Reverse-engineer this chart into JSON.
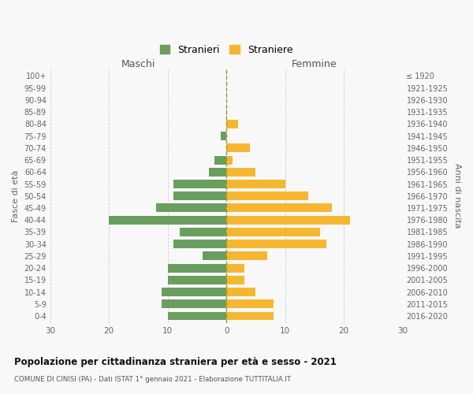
{
  "age_groups": [
    "0-4",
    "5-9",
    "10-14",
    "15-19",
    "20-24",
    "25-29",
    "30-34",
    "35-39",
    "40-44",
    "45-49",
    "50-54",
    "55-59",
    "60-64",
    "65-69",
    "70-74",
    "75-79",
    "80-84",
    "85-89",
    "90-94",
    "95-99",
    "100+"
  ],
  "birth_years": [
    "2016-2020",
    "2011-2015",
    "2006-2010",
    "2001-2005",
    "1996-2000",
    "1991-1995",
    "1986-1990",
    "1981-1985",
    "1976-1980",
    "1971-1975",
    "1966-1970",
    "1961-1965",
    "1956-1960",
    "1951-1955",
    "1946-1950",
    "1941-1945",
    "1936-1940",
    "1931-1935",
    "1926-1930",
    "1921-1925",
    "≤ 1920"
  ],
  "males": [
    10,
    11,
    11,
    10,
    10,
    4,
    9,
    8,
    20,
    12,
    9,
    9,
    3,
    2,
    0,
    1,
    0,
    0,
    0,
    0,
    0
  ],
  "females": [
    8,
    8,
    5,
    3,
    3,
    7,
    17,
    16,
    21,
    18,
    14,
    10,
    5,
    1,
    4,
    0,
    2,
    0,
    0,
    0,
    0
  ],
  "male_color": "#6a9e5f",
  "female_color": "#f5b731",
  "xlim": 30,
  "title": "Popolazione per cittadinanza straniera per età e sesso - 2021",
  "subtitle": "COMUNE DI CINISI (PA) - Dati ISTAT 1° gennaio 2021 - Elaborazione TUTTITALIA.IT",
  "ylabel_left": "Fasce di età",
  "ylabel_right": "Anni di nascita",
  "xlabel_left": "Maschi",
  "xlabel_right": "Femmine",
  "legend_male": "Stranieri",
  "legend_female": "Straniere",
  "bg_color": "#f8f8f8",
  "grid_color": "#cccccc",
  "dashed_line_color": "#999933"
}
